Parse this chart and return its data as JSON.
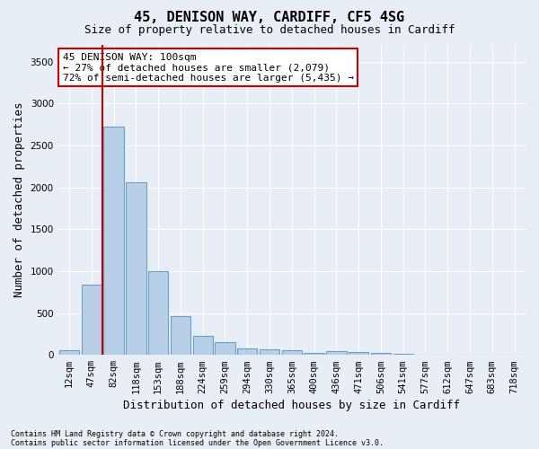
{
  "title": "45, DENISON WAY, CARDIFF, CF5 4SG",
  "subtitle": "Size of property relative to detached houses in Cardiff",
  "xlabel": "Distribution of detached houses by size in Cardiff",
  "ylabel": "Number of detached properties",
  "footnote1": "Contains HM Land Registry data © Crown copyright and database right 2024.",
  "footnote2": "Contains public sector information licensed under the Open Government Licence v3.0.",
  "bar_labels": [
    "12sqm",
    "47sqm",
    "82sqm",
    "118sqm",
    "153sqm",
    "188sqm",
    "224sqm",
    "259sqm",
    "294sqm",
    "330sqm",
    "365sqm",
    "400sqm",
    "436sqm",
    "471sqm",
    "506sqm",
    "541sqm",
    "577sqm",
    "612sqm",
    "647sqm",
    "683sqm",
    "718sqm"
  ],
  "bar_values": [
    60,
    840,
    2720,
    2060,
    1000,
    460,
    230,
    155,
    75,
    65,
    55,
    25,
    50,
    35,
    20,
    10,
    5,
    3,
    2,
    1,
    1
  ],
  "bar_color": "#b8cfe8",
  "bar_edge_color": "#6a9fc8",
  "ylim": [
    0,
    3700
  ],
  "yticks": [
    0,
    500,
    1000,
    1500,
    2000,
    2500,
    3000,
    3500
  ],
  "red_line_x": 1.5,
  "annotation_title": "45 DENISON WAY: 100sqm",
  "annotation_line1": "← 27% of detached houses are smaller (2,079)",
  "annotation_line2": "72% of semi-detached houses are larger (5,435) →",
  "annotation_box_color": "#ffffff",
  "annotation_box_edge": "#cc0000",
  "red_line_color": "#cc0000",
  "bg_color": "#e8eef5",
  "plot_bg_color": "#e8eef5",
  "grid_color": "#ffffff",
  "title_fontsize": 11,
  "subtitle_fontsize": 9,
  "axis_label_fontsize": 9,
  "tick_fontsize": 7.5,
  "annotation_fontsize": 8
}
